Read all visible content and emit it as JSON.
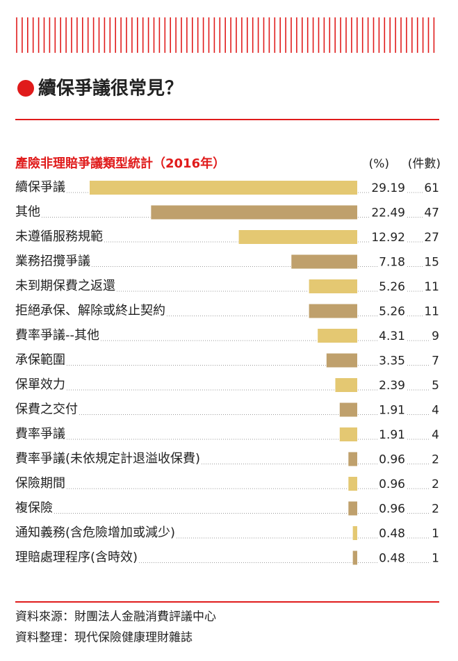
{
  "chart_data": {
    "type": "bar",
    "title": "續保爭議很常見？",
    "subtitle": "產險非理賠爭議類型統計（2016年）",
    "value_header": "(%)",
    "count_header": "(件數)",
    "categories": [
      "續保爭議",
      "其他",
      "未遵循服務規範",
      "業務招攬爭議",
      "未到期保費之返還",
      "拒絕承保、解除或終止契約",
      "費率爭議--其他",
      "承保範圍",
      "保單效力",
      "保費之交付",
      "費率爭議",
      "費率爭議(未依規定計退溢收保費)",
      "保險期間",
      "複保險",
      "通知義務(含危險增加或減少)",
      "理賠處理程序(含時效)"
    ],
    "values": [
      29.19,
      22.49,
      12.92,
      7.18,
      5.26,
      5.26,
      4.31,
      3.35,
      2.39,
      1.91,
      1.91,
      0.96,
      0.96,
      0.96,
      0.48,
      0.48
    ],
    "counts": [
      61,
      47,
      27,
      15,
      11,
      11,
      9,
      7,
      5,
      4,
      4,
      2,
      2,
      2,
      1,
      1
    ],
    "colors": [
      "#e4c872",
      "#bfa06c"
    ],
    "sources": [
      "資料來源：財團法人金融消費評議中心",
      "資料整理：現代保險健康理財雜誌"
    ]
  }
}
